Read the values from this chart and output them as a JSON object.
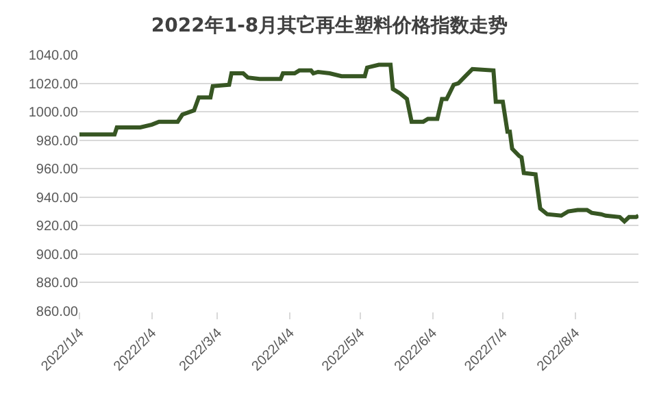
{
  "chart_data": {
    "type": "line",
    "title": "2022年1-8月其它再生塑料价格指数走势",
    "x": [
      "2022-01-04",
      "2022-01-19",
      "2022-01-20",
      "2022-01-30",
      "2022-02-04",
      "2022-02-07",
      "2022-02-15",
      "2022-02-17",
      "2022-02-22",
      "2022-02-24",
      "2022-03-01",
      "2022-03-02",
      "2022-03-09",
      "2022-03-10",
      "2022-03-15",
      "2022-03-17",
      "2022-03-22",
      "2022-03-31",
      "2022-04-01",
      "2022-04-06",
      "2022-04-08",
      "2022-04-13",
      "2022-04-14",
      "2022-04-16",
      "2022-04-21",
      "2022-04-26",
      "2022-05-06",
      "2022-05-07",
      "2022-05-12",
      "2022-05-17",
      "2022-05-18",
      "2022-05-21",
      "2022-05-24",
      "2022-05-26",
      "2022-05-31",
      "2022-06-02",
      "2022-06-06",
      "2022-06-08",
      "2022-06-10",
      "2022-06-13",
      "2022-06-15",
      "2022-06-18",
      "2022-06-21",
      "2022-06-30",
      "2022-07-01",
      "2022-07-04",
      "2022-07-06",
      "2022-07-07",
      "2022-07-08",
      "2022-07-11",
      "2022-07-12",
      "2022-07-13",
      "2022-07-18",
      "2022-07-20",
      "2022-07-23",
      "2022-07-29",
      "2022-08-01",
      "2022-08-05",
      "2022-08-09",
      "2022-08-11",
      "2022-08-15",
      "2022-08-17",
      "2022-08-23",
      "2022-08-25",
      "2022-08-27",
      "2022-08-30",
      "2022-08-31"
    ],
    "series": [
      {
        "color": "#375623",
        "values": [
          984,
          984,
          989,
          989,
          991,
          993,
          993,
          998,
          1001,
          1010,
          1010,
          1018,
          1019,
          1027,
          1027,
          1024,
          1023,
          1023,
          1027,
          1027,
          1029,
          1029,
          1027,
          1028,
          1027,
          1025,
          1025,
          1031,
          1033,
          1033,
          1016,
          1013,
          1009,
          993,
          993,
          995,
          995,
          1009,
          1009,
          1019,
          1020,
          1025,
          1030,
          1029,
          1007,
          1007,
          986,
          986,
          974,
          969,
          968,
          957,
          956,
          932,
          928,
          927,
          930,
          931,
          931,
          929,
          928,
          927,
          926,
          923,
          926,
          926,
          927
        ]
      }
    ],
    "xlim": [
      "2022-01-04",
      "2022-08-31"
    ],
    "xticks": [
      {
        "value": "2022-01-04",
        "label": "2022/1/4"
      },
      {
        "value": "2022-02-04",
        "label": "2022/2/4"
      },
      {
        "value": "2022-03-04",
        "label": "2022/3/4"
      },
      {
        "value": "2022-04-04",
        "label": "2022/4/4"
      },
      {
        "value": "2022-05-04",
        "label": "2022/5/4"
      },
      {
        "value": "2022-06-04",
        "label": "2022/6/4"
      },
      {
        "value": "2022-07-04",
        "label": "2022/7/4"
      },
      {
        "value": "2022-08-04",
        "label": "2022/8/4"
      }
    ],
    "ylim": [
      860,
      1040
    ],
    "yticks": [
      {
        "value": 860,
        "label": "860.00"
      },
      {
        "value": 880,
        "label": "880.00"
      },
      {
        "value": 900,
        "label": "900.00"
      },
      {
        "value": 920,
        "label": "920.00"
      },
      {
        "value": 940,
        "label": "940.00"
      },
      {
        "value": 960,
        "label": "960.00"
      },
      {
        "value": 980,
        "label": "980.00"
      },
      {
        "value": 1000,
        "label": "1000.00"
      },
      {
        "value": 1020,
        "label": "1020.00"
      },
      {
        "value": 1040,
        "label": "1040.00"
      }
    ],
    "grid": "y",
    "marker": "none",
    "line_style": "solid"
  }
}
